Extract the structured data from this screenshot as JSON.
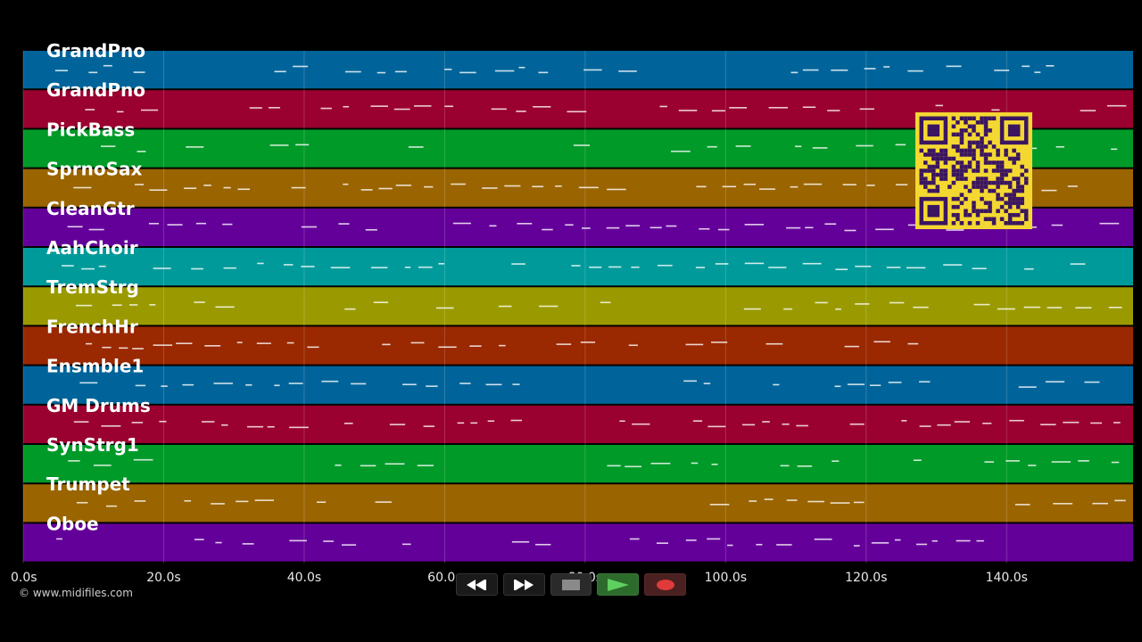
{
  "app": {
    "copyright": "© www.midifiles.com"
  },
  "tracks": [
    {
      "name": "GrandPno",
      "color": "#00649a"
    },
    {
      "name": "GrandPno",
      "color": "#9a0030"
    },
    {
      "name": "PickBass",
      "color": "#009a28"
    },
    {
      "name": "SprnoSax",
      "color": "#9a6400"
    },
    {
      "name": "CleanGtr",
      "color": "#64009a"
    },
    {
      "name": "AahChoir",
      "color": "#009a9a"
    },
    {
      "name": "TremStrg",
      "color": "#9a9a00"
    },
    {
      "name": "FrenchHr",
      "color": "#9a2800"
    },
    {
      "name": "Ensmble1",
      "color": "#00649a"
    },
    {
      "name": "GM Drums",
      "color": "#9a0030"
    },
    {
      "name": "SynStrg1",
      "color": "#009a28"
    },
    {
      "name": "Trumpet",
      "color": "#9a6400"
    },
    {
      "name": "Oboe",
      "color": "#64009a"
    }
  ],
  "timeline": {
    "ticks": [
      "0.0s",
      "20.0s",
      "40.0s",
      "60.0s",
      "80.0s",
      "100.0s",
      "120.0s",
      "140.0s"
    ],
    "tick_values": [
      0,
      20,
      40,
      60,
      80,
      100,
      120,
      140
    ],
    "range": [
      0,
      158
    ]
  },
  "transport": {
    "rewind_icon": "rewind-icon",
    "forward_icon": "fast-forward-icon",
    "stop_icon": "stop-icon",
    "play_icon": "play-icon",
    "record_icon": "record-icon",
    "stop_color": "#8a8a8a",
    "play_color": "#5fcf5f",
    "record_color": "#e03a3a"
  },
  "qr_code": {
    "icon": "qr-code-icon",
    "color": "#f4d832"
  }
}
